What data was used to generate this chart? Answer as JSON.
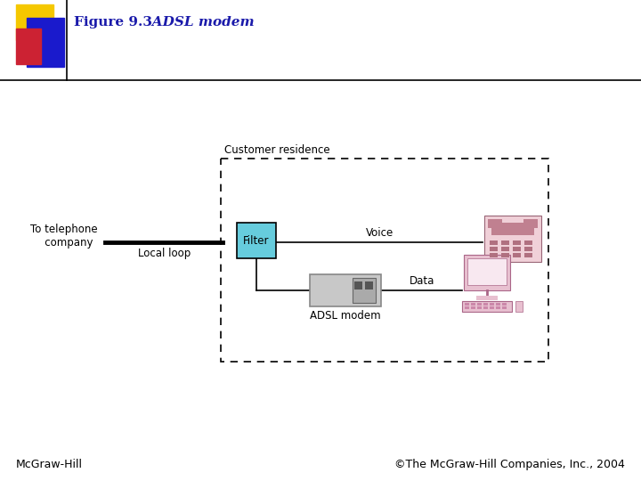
{
  "title_fig": "Figure 9.3",
  "title_main": "   ADSL modem",
  "footer_left": "McGraw-Hill",
  "footer_right": "©The McGraw-Hill Companies, Inc., 2004",
  "title_color": "#1a1aaa",
  "filter_box_color": "#66ccdd",
  "filter_text": "Filter",
  "customer_label": "Customer residence",
  "local_loop_label": "Local loop",
  "telephone_label": "To telephone\n   company",
  "voice_label": "Voice",
  "data_label": "Data",
  "modem_label": "ADSL modem",
  "bg_color": "#ffffff",
  "yellow_color": "#f5c800",
  "blue_color": "#1a1acc",
  "red_color": "#cc2233"
}
